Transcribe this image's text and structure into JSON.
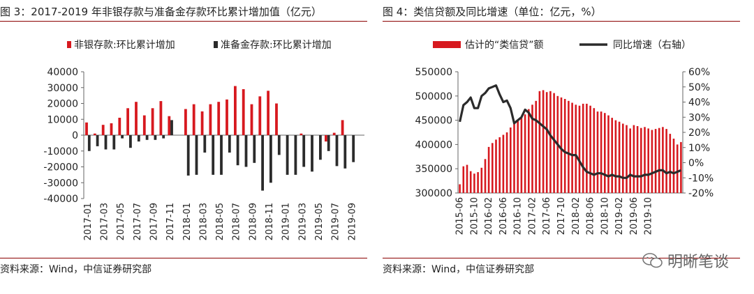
{
  "panels": [
    {
      "title": "图 3：2017-2019 年非银存款与准备金存款环比累计增加值（亿元）",
      "source": "资料来源：Wind，中信证券研究部"
    },
    {
      "title": "图 4：类信贷额及同比增速（单位：亿元，%）",
      "source": "资料来源：Wind，中信证券研究部"
    }
  ],
  "watermark": "明晰笔谈",
  "chart_data": [
    {
      "type": "bar",
      "title": "",
      "legend_position": "top-center",
      "ylim": [
        -40000,
        40000
      ],
      "y_ticks": [
        40000,
        30000,
        20000,
        10000,
        0,
        -10000,
        -20000,
        -30000,
        -40000
      ],
      "x_tick_labels": [
        "2017-01",
        "2017-03",
        "2017-05",
        "2017-07",
        "2017-09",
        "2017-11",
        "2018-01",
        "2018-03",
        "2018-05",
        "2018-07",
        "2018-09",
        "2018-11",
        "2019-01",
        "2019-03",
        "2019-05",
        "2019-07",
        "2019-09"
      ],
      "categories": [
        "2017-01",
        "2017-02",
        "2017-03",
        "2017-04",
        "2017-05",
        "2017-06",
        "2017-07",
        "2017-08",
        "2017-09",
        "2017-10",
        "2017-11",
        "2017-12",
        "2018-01",
        "2018-02",
        "2018-03",
        "2018-04",
        "2018-05",
        "2018-06",
        "2018-07",
        "2018-08",
        "2018-09",
        "2018-10",
        "2018-11",
        "2018-12",
        "2019-01",
        "2019-02",
        "2019-03",
        "2019-04",
        "2019-05",
        "2019-06",
        "2019-07",
        "2019-08",
        "2019-09",
        "2019-10"
      ],
      "series": [
        {
          "name": "非银存款:环比累计增加",
          "color": "#d7191f",
          "values": [
            8000,
            1000,
            6500,
            7500,
            11000,
            17000,
            21000,
            12500,
            17000,
            21500,
            12000,
            null,
            16500,
            19500,
            15000,
            19500,
            21000,
            22500,
            31000,
            29000,
            19500,
            24500,
            28000,
            20000,
            null,
            null,
            1000,
            null,
            null,
            -4000,
            1500,
            9500,
            null,
            null
          ]
        },
        {
          "name": "准备金存款:环比累计增加",
          "color": "#2b2b2b",
          "values": [
            -10000,
            -7000,
            -9000,
            -9000,
            -2000,
            -8000,
            -4000,
            -3000,
            -3000,
            -2000,
            9500,
            null,
            -25500,
            -25000,
            -11000,
            -25000,
            -25000,
            -11000,
            -19000,
            -20000,
            -17500,
            -35000,
            -30000,
            -12500,
            -25000,
            -25000,
            -20000,
            -23000,
            -15500,
            -10000,
            -19500,
            -21000,
            -17000,
            null
          ]
        }
      ]
    },
    {
      "type": "bar+line",
      "title": "",
      "legend_position": "top-center",
      "ylim_left": [
        300000,
        550000
      ],
      "ylim_right": [
        -20,
        60
      ],
      "y_ticks_left": [
        550000,
        500000,
        450000,
        400000,
        350000,
        300000
      ],
      "y_ticks_right": [
        "60%",
        "50%",
        "40%",
        "30%",
        "20%",
        "10%",
        "0%",
        "-10%",
        "-20%"
      ],
      "x_tick_labels": [
        "2015-06",
        "2015-10",
        "2016-02",
        "2016-06",
        "2016-10",
        "2017-02",
        "2017-06",
        "2017-10",
        "2018-02",
        "2018-06",
        "2018-10",
        "2019-02",
        "2019-06",
        "2019-10"
      ],
      "series": [
        {
          "name": "估计的“类信贷”额",
          "type": "bar",
          "axis": "left",
          "color": "#d7191f",
          "values": [
            318000,
            355000,
            358000,
            345000,
            340000,
            343000,
            352000,
            370000,
            395000,
            403000,
            410000,
            415000,
            420000,
            425000,
            435000,
            443000,
            448000,
            455000,
            462000,
            473000,
            482000,
            490000,
            510000,
            512000,
            508000,
            510000,
            506000,
            500000,
            497000,
            494000,
            490000,
            486000,
            482000,
            480000,
            484000,
            484000,
            480000,
            475000,
            468000,
            468000,
            465000,
            460000,
            455000,
            450000,
            447000,
            443000,
            440000,
            433000,
            440000,
            438000,
            434000,
            436000,
            433000,
            430000,
            432000,
            434000,
            436000,
            432000,
            422000,
            412000,
            400000,
            405000
          ]
        },
        {
          "name": "同比增速（右轴）",
          "type": "line",
          "axis": "right",
          "color": "#2b2b2b",
          "values": [
            27,
            38,
            40,
            43,
            36,
            36,
            44,
            46,
            49,
            50,
            51,
            45,
            40,
            41,
            36,
            26,
            28,
            30,
            35,
            33,
            29,
            28,
            26,
            24,
            22,
            18,
            15,
            12,
            9,
            7,
            6,
            5,
            5,
            1,
            -3,
            -6,
            -7,
            -8,
            -7,
            -7,
            -8,
            -9,
            -8,
            -9,
            -9,
            -10,
            -10,
            -8,
            -9,
            -9,
            -9,
            -8,
            -8,
            -7,
            -6,
            -5,
            -5,
            -7,
            -6,
            -7,
            -6,
            -5
          ]
        }
      ]
    }
  ]
}
